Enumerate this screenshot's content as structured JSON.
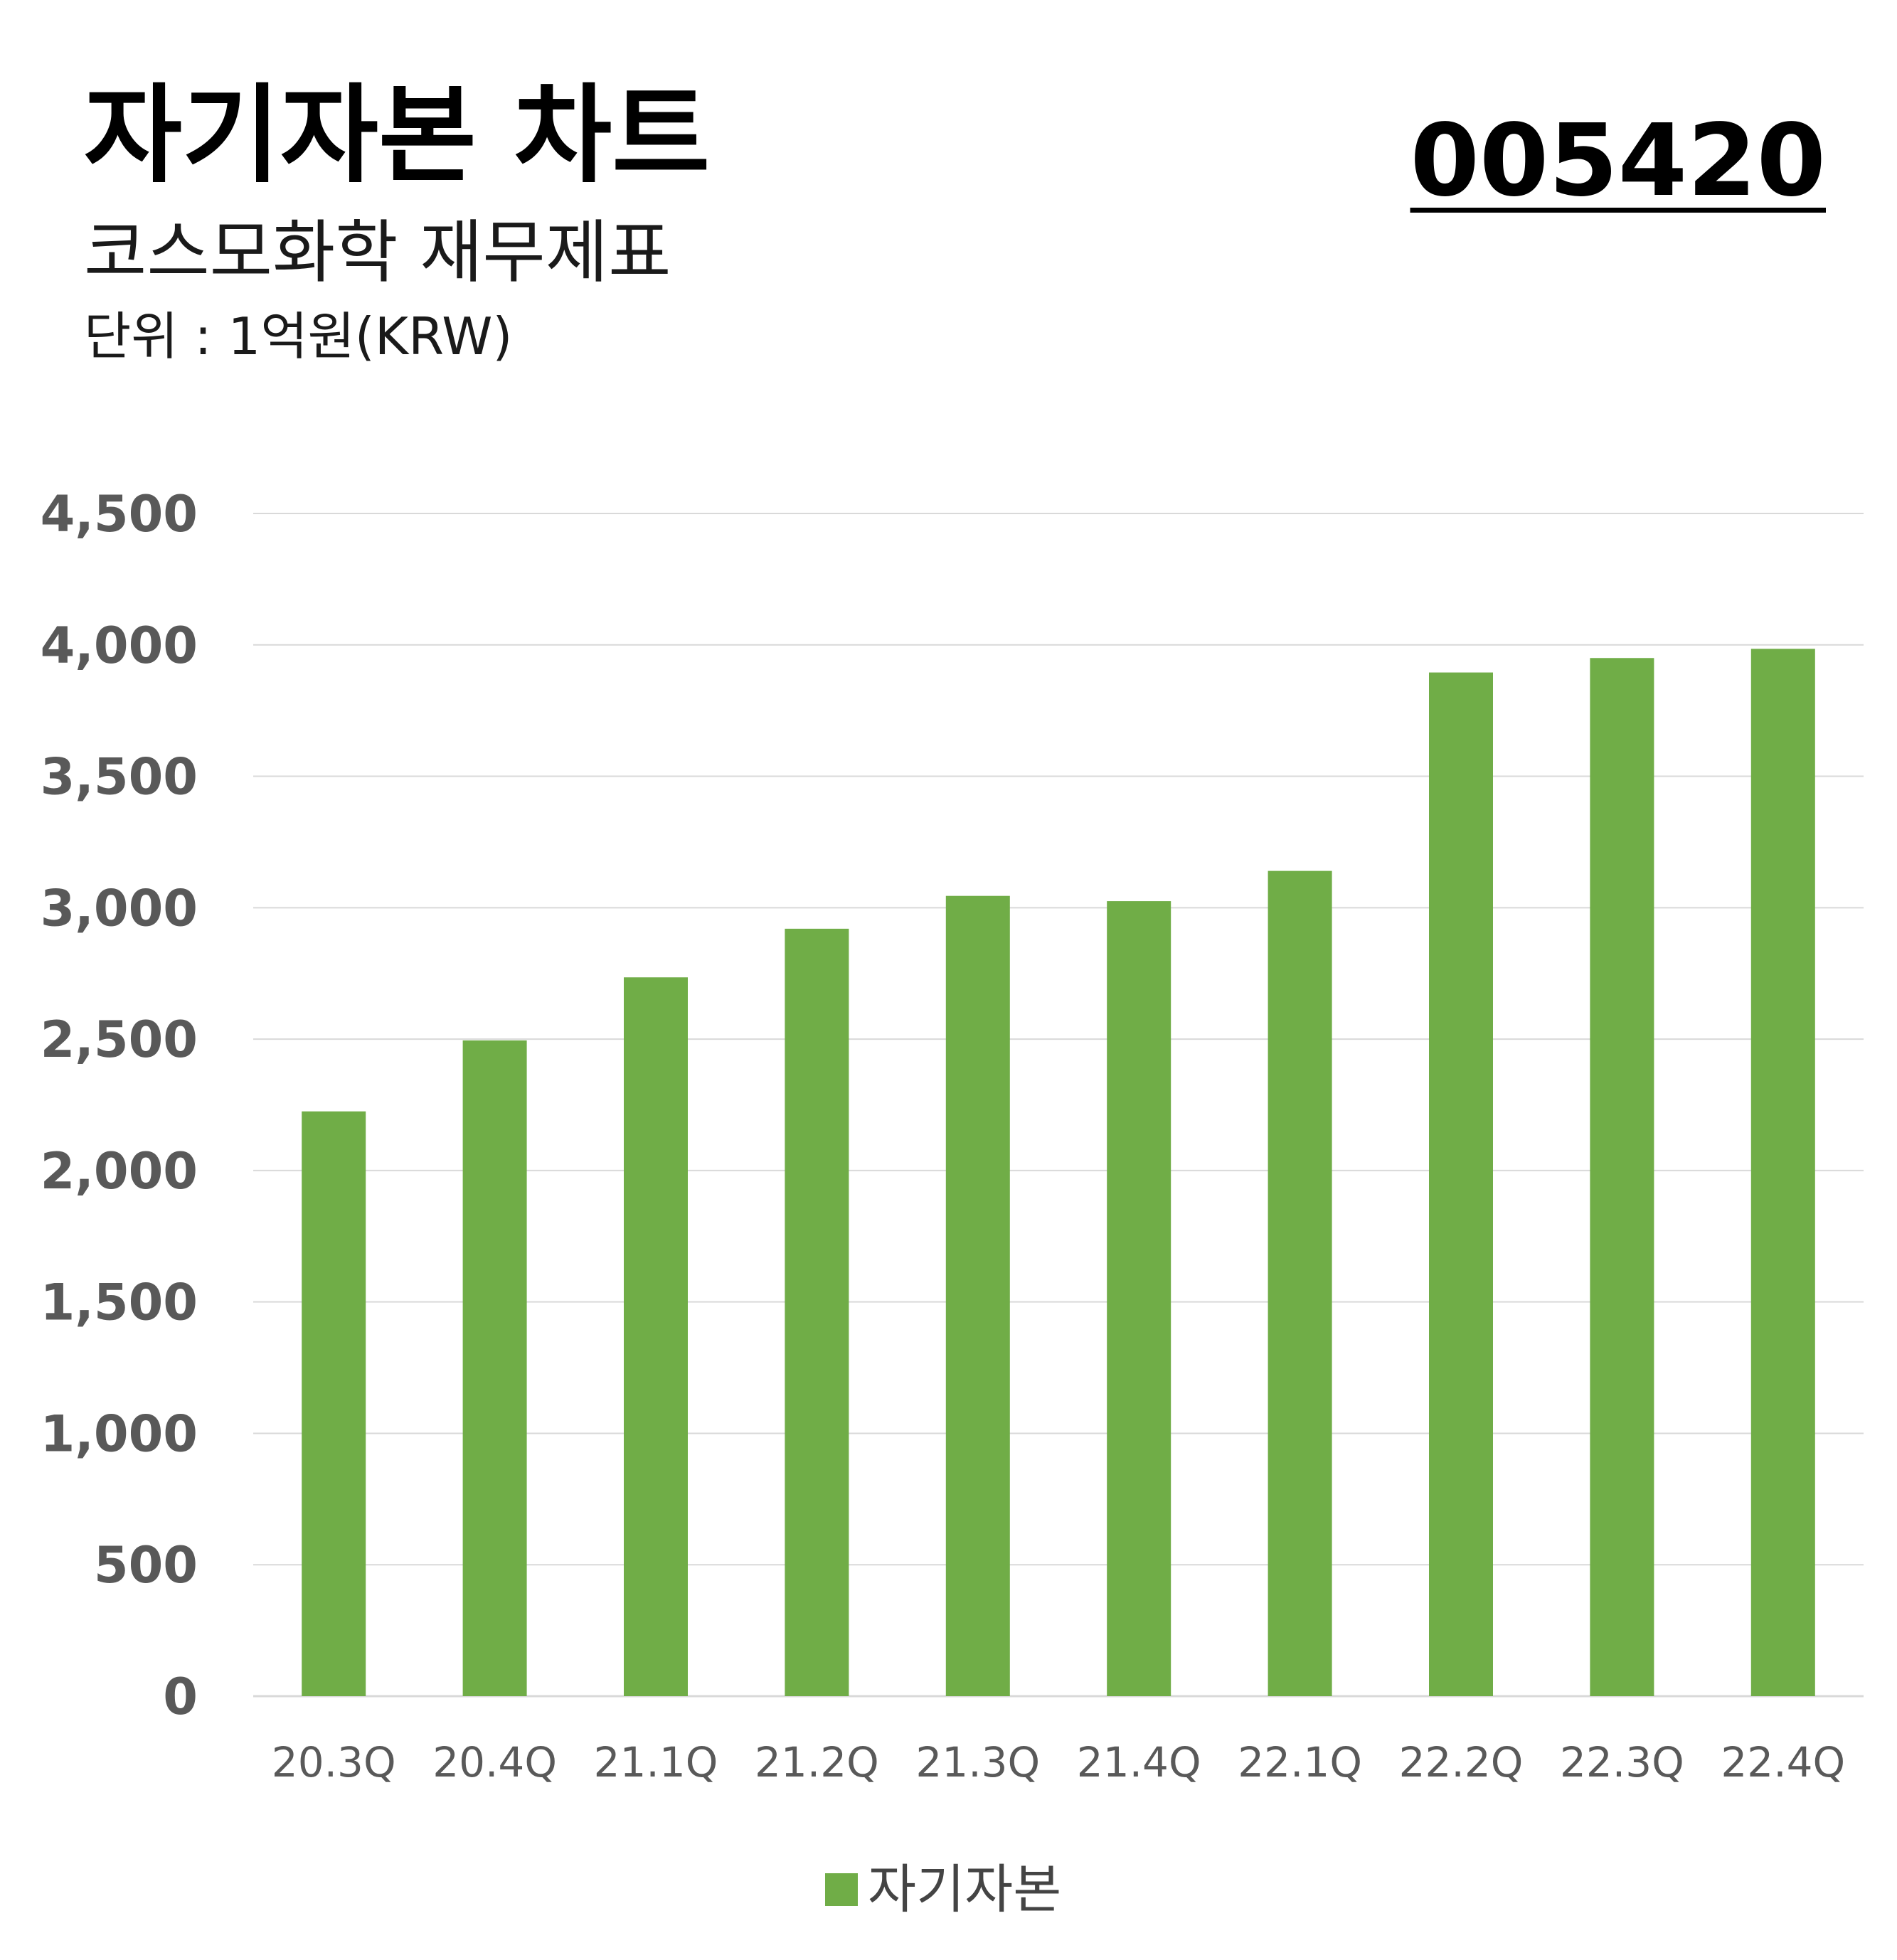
{
  "header": {
    "title": "자기자본 차트",
    "subtitle": "코스모화학 재무제표",
    "unit": "단위 : 1억원(KRW)",
    "stock_code": "005420"
  },
  "colors": {
    "bar": "#70ad47",
    "grid": "#d9d9d9",
    "tick": "#595959",
    "category": "#595959"
  },
  "chart_data": {
    "type": "bar",
    "categories": [
      "20.3Q",
      "20.4Q",
      "21.1Q",
      "21.2Q",
      "21.3Q",
      "21.4Q",
      "22.1Q",
      "22.2Q",
      "22.3Q",
      "22.4Q"
    ],
    "series": [
      {
        "name": "자기자본",
        "values": [
          2225,
          2495,
          2735,
          2920,
          3045,
          3025,
          3140,
          3895,
          3950,
          3985
        ]
      }
    ],
    "ylim": [
      0,
      4500
    ],
    "yticks": [
      0,
      500,
      1000,
      1500,
      2000,
      2500,
      3000,
      3500,
      4000,
      4500
    ],
    "ytick_labels": [
      "0",
      "500",
      "1,000",
      "1,500",
      "2,000",
      "2,500",
      "3,000",
      "3,500",
      "4,000",
      "4,500"
    ],
    "grid": true,
    "legend": "bottom"
  }
}
